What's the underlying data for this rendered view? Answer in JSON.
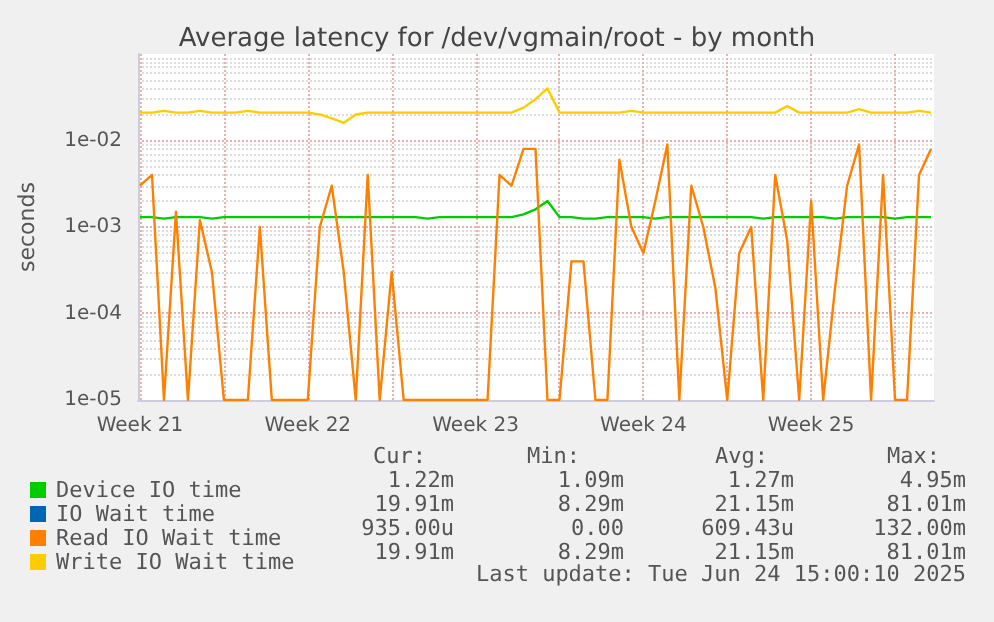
{
  "chart_data": {
    "type": "line",
    "title": "Average latency for /dev/vgmain/root - by month",
    "ylabel": "seconds",
    "log": "y",
    "grid": true,
    "legend": "bottom",
    "marker": "none",
    "line_style": "solid",
    "xlim": [
      "2025-05-22T10:00",
      "2025-06-24T15:00"
    ],
    "xticks": [
      {
        "value": "2025-05-22T12:00",
        "label": "Week 21"
      },
      {
        "value": "2025-05-26T00:00",
        "label": null
      },
      {
        "value": "2025-05-29T12:00",
        "label": "Week 22"
      },
      {
        "value": "2025-06-02T00:00",
        "label": null
      },
      {
        "value": "2025-06-05T12:00",
        "label": "Week 23"
      },
      {
        "value": "2025-06-09T00:00",
        "label": null
      },
      {
        "value": "2025-06-12T12:00",
        "label": "Week 24"
      },
      {
        "value": "2025-06-16T00:00",
        "label": null
      },
      {
        "value": "2025-06-19T12:00",
        "label": "Week 25"
      },
      {
        "value": "2025-06-23T00:00",
        "label": null
      }
    ],
    "ylim": [
      1e-05,
      0.1
    ],
    "yticks": [
      {
        "value": 1e-05,
        "label": "1e-05"
      },
      {
        "value": 0.0001,
        "label": "1e-04"
      },
      {
        "value": 0.001,
        "label": "1e-03"
      },
      {
        "value": 0.01,
        "label": "1e-02"
      }
    ],
    "x": [
      "2025-05-22T12:00",
      "2025-05-23T00:00",
      "2025-05-23T12:00",
      "2025-05-24T00:00",
      "2025-05-24T12:00",
      "2025-05-25T00:00",
      "2025-05-25T12:00",
      "2025-05-26T00:00",
      "2025-05-26T12:00",
      "2025-05-27T00:00",
      "2025-05-27T12:00",
      "2025-05-28T00:00",
      "2025-05-28T12:00",
      "2025-05-29T00:00",
      "2025-05-29T12:00",
      "2025-05-30T00:00",
      "2025-05-30T12:00",
      "2025-05-31T00:00",
      "2025-05-31T12:00",
      "2025-06-01T00:00",
      "2025-06-01T12:00",
      "2025-06-02T00:00",
      "2025-06-02T12:00",
      "2025-06-03T00:00",
      "2025-06-03T12:00",
      "2025-06-04T00:00",
      "2025-06-04T12:00",
      "2025-06-05T00:00",
      "2025-06-05T12:00",
      "2025-06-06T00:00",
      "2025-06-06T12:00",
      "2025-06-07T00:00",
      "2025-06-07T12:00",
      "2025-06-08T00:00",
      "2025-06-08T12:00",
      "2025-06-09T00:00",
      "2025-06-09T12:00",
      "2025-06-10T00:00",
      "2025-06-10T12:00",
      "2025-06-11T00:00",
      "2025-06-11T12:00",
      "2025-06-12T00:00",
      "2025-06-12T12:00",
      "2025-06-13T00:00",
      "2025-06-13T12:00",
      "2025-06-14T00:00",
      "2025-06-14T12:00",
      "2025-06-15T00:00",
      "2025-06-15T12:00",
      "2025-06-16T00:00",
      "2025-06-16T12:00",
      "2025-06-17T00:00",
      "2025-06-17T12:00",
      "2025-06-18T00:00",
      "2025-06-18T12:00",
      "2025-06-19T00:00",
      "2025-06-19T12:00",
      "2025-06-20T00:00",
      "2025-06-20T12:00",
      "2025-06-21T00:00",
      "2025-06-21T12:00",
      "2025-06-22T00:00",
      "2025-06-22T12:00",
      "2025-06-23T00:00",
      "2025-06-23T12:00",
      "2025-06-24T00:00",
      "2025-06-24T12:00"
    ],
    "series": [
      {
        "name": "Device IO time",
        "color": "#00cc00",
        "values": [
          0.0013,
          0.0013,
          0.00125,
          0.0013,
          0.0013,
          0.0013,
          0.00125,
          0.0013,
          0.0013,
          0.0013,
          0.0013,
          0.0013,
          0.0013,
          0.0013,
          0.0013,
          0.0013,
          0.0013,
          0.0013,
          0.0013,
          0.0013,
          0.0013,
          0.0013,
          0.0013,
          0.0013,
          0.00125,
          0.0013,
          0.0013,
          0.0013,
          0.0013,
          0.0013,
          0.0013,
          0.0013,
          0.0014,
          0.0016,
          0.002,
          0.0013,
          0.0013,
          0.00125,
          0.00125,
          0.0013,
          0.0013,
          0.0013,
          0.0013,
          0.00125,
          0.0013,
          0.0013,
          0.0013,
          0.0013,
          0.0013,
          0.0013,
          0.0013,
          0.0013,
          0.00125,
          0.0013,
          0.0013,
          0.0013,
          0.0013,
          0.0013,
          0.00125,
          0.0013,
          0.0013,
          0.0013,
          0.0013,
          0.00125,
          0.0013,
          0.0013,
          0.0013
        ]
      },
      {
        "name": "IO Wait time",
        "color": "#0066b3",
        "values": [
          null,
          null,
          null,
          null,
          null,
          null,
          null,
          null,
          null,
          null,
          null,
          null,
          null,
          null,
          null,
          null,
          null,
          null,
          null,
          null,
          null,
          null,
          null,
          null,
          null,
          null,
          null,
          null,
          null,
          null,
          null,
          null,
          null,
          null,
          null,
          null,
          null,
          null,
          null,
          null,
          null,
          null,
          null,
          null,
          null,
          null,
          null,
          null,
          null,
          null,
          null,
          null,
          null,
          null,
          null,
          null,
          null,
          null,
          null,
          null,
          null,
          null,
          null,
          null,
          null,
          null,
          null
        ]
      },
      {
        "name": "Read IO Wait time",
        "color": "#ff8000",
        "values": [
          0.003,
          0.004,
          1e-05,
          0.0015,
          1e-05,
          0.0012,
          0.0003,
          1e-05,
          1e-05,
          1e-05,
          0.001,
          1e-05,
          1e-05,
          1e-05,
          1e-05,
          0.001,
          0.003,
          0.0003,
          1e-05,
          0.004,
          1e-05,
          0.0003,
          1e-05,
          1e-05,
          1e-05,
          1e-05,
          1e-05,
          1e-05,
          1e-05,
          1e-05,
          0.004,
          0.003,
          0.008,
          0.008,
          1e-05,
          1e-05,
          0.0004,
          0.0004,
          1e-05,
          1e-05,
          0.006,
          0.001,
          0.0005,
          0.002,
          0.009,
          1e-05,
          0.003,
          0.001,
          0.0002,
          1e-05,
          0.0005,
          0.001,
          1e-05,
          0.004,
          0.0007,
          1e-05,
          0.002,
          1e-05,
          0.0002,
          0.003,
          0.009,
          1e-05,
          0.004,
          1e-05,
          1e-05,
          0.004,
          0.008
        ]
      },
      {
        "name": "Write IO Wait time",
        "color": "#ffcc00",
        "values": [
          0.021,
          0.021,
          0.022,
          0.021,
          0.021,
          0.022,
          0.021,
          0.021,
          0.021,
          0.022,
          0.021,
          0.021,
          0.021,
          0.021,
          0.021,
          0.02,
          0.018,
          0.016,
          0.02,
          0.021,
          0.021,
          0.021,
          0.021,
          0.021,
          0.021,
          0.021,
          0.021,
          0.021,
          0.021,
          0.021,
          0.021,
          0.021,
          0.024,
          0.03,
          0.04,
          0.021,
          0.021,
          0.021,
          0.021,
          0.021,
          0.021,
          0.022,
          0.021,
          0.021,
          0.021,
          0.021,
          0.021,
          0.021,
          0.021,
          0.021,
          0.021,
          0.021,
          0.021,
          0.021,
          0.025,
          0.021,
          0.021,
          0.021,
          0.021,
          0.021,
          0.023,
          0.021,
          0.021,
          0.021,
          0.021,
          0.022,
          0.021
        ]
      }
    ],
    "annotations": [
      "Cur:",
      "Min:",
      "Avg:",
      "Max:",
      "1.22m",
      "1.09m",
      "1.27m",
      "4.95m",
      "19.91m",
      "8.29m",
      "21.15m",
      "81.01m",
      "935.00u",
      "0.00",
      "609.43u",
      "132.00m",
      "19.91m",
      "8.29m",
      "21.15m",
      "81.01m",
      "Last update: Tue Jun 24 15:00:10 2025"
    ]
  }
}
